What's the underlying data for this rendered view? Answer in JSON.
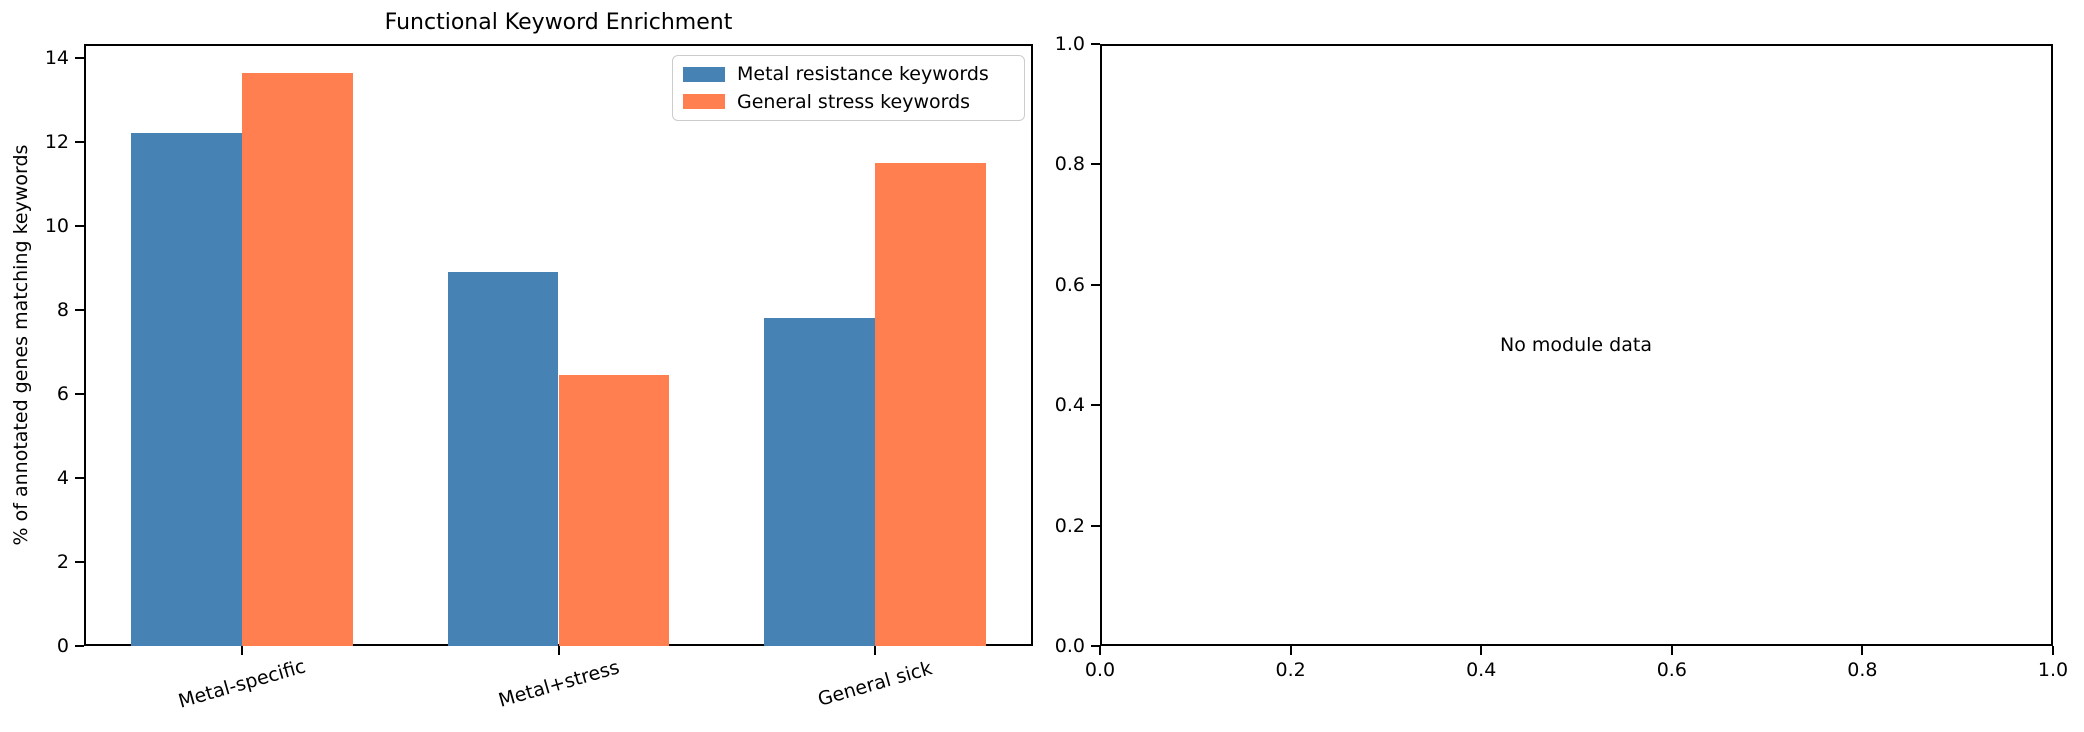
{
  "figure": {
    "background_color": "#ffffff",
    "text_color": "#000000"
  },
  "chart_data": [
    {
      "type": "bar",
      "title": "Functional Keyword Enrichment",
      "ylabel": "% of annotated genes matching keywords",
      "xlabel": "",
      "categories": [
        "Metal-specific",
        "Metal+stress",
        "General sick"
      ],
      "series": [
        {
          "name": "Metal resistance keywords",
          "color": "#4682b4",
          "values": [
            12.2,
            8.9,
            7.8
          ]
        },
        {
          "name": "General stress keywords",
          "color": "#ff7f50",
          "values": [
            13.65,
            6.45,
            11.5
          ]
        }
      ],
      "ylim": [
        0,
        14.33
      ],
      "yticks": [
        0,
        2,
        4,
        6,
        8,
        10,
        12,
        14
      ],
      "yticklabels": [
        "0",
        "2",
        "4",
        "6",
        "8",
        "10",
        "12",
        "14"
      ],
      "grid": false,
      "legend_position": "upper right"
    },
    {
      "type": "empty",
      "annotation": "No module data",
      "xlim": [
        0,
        1
      ],
      "ylim": [
        0,
        1
      ],
      "xticks": [
        0,
        0.2,
        0.4,
        0.6,
        0.8,
        1.0
      ],
      "xticklabels": [
        "0.0",
        "0.2",
        "0.4",
        "0.6",
        "0.8",
        "1.0"
      ],
      "yticks": [
        0,
        0.2,
        0.4,
        0.6,
        0.8,
        1.0
      ],
      "yticklabels": [
        "0.0",
        "0.2",
        "0.4",
        "0.6",
        "0.8",
        "1.0"
      ],
      "grid": false
    }
  ]
}
